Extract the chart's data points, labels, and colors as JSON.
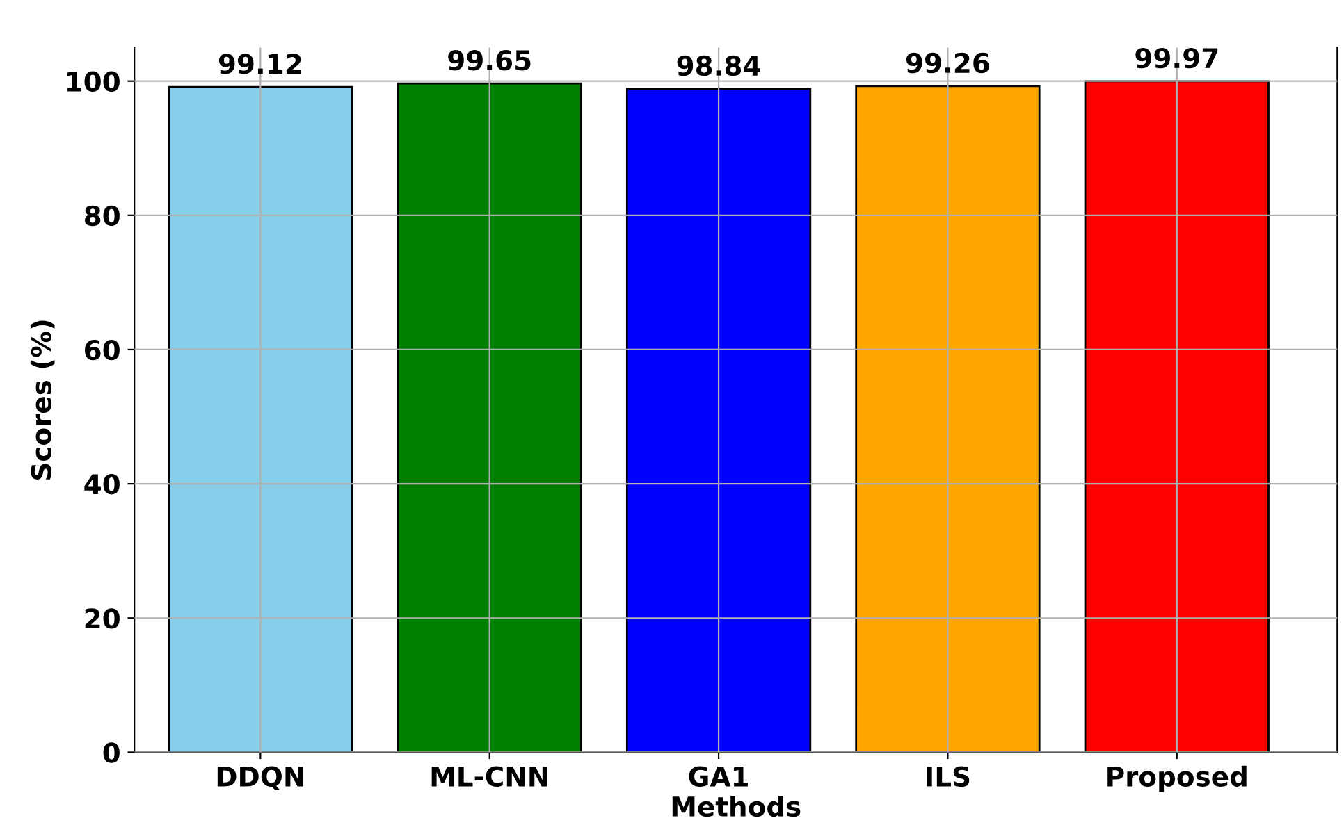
{
  "chart_data": {
    "type": "bar",
    "xlabel": "Methods",
    "ylabel": "Scores (%)",
    "categories": [
      "DDQN",
      "ML-CNN",
      "GA1",
      "ILS",
      "Proposed"
    ],
    "values": [
      99.12,
      99.65,
      98.84,
      99.26,
      99.97
    ],
    "colors": [
      "#87ceeb",
      "#008000",
      "#0000ff",
      "#ffa500",
      "#ff0000"
    ],
    "ylim": [
      0,
      105
    ],
    "yticks": [
      0,
      20,
      40,
      60,
      80,
      100
    ],
    "grid": true,
    "data_labels": true
  }
}
